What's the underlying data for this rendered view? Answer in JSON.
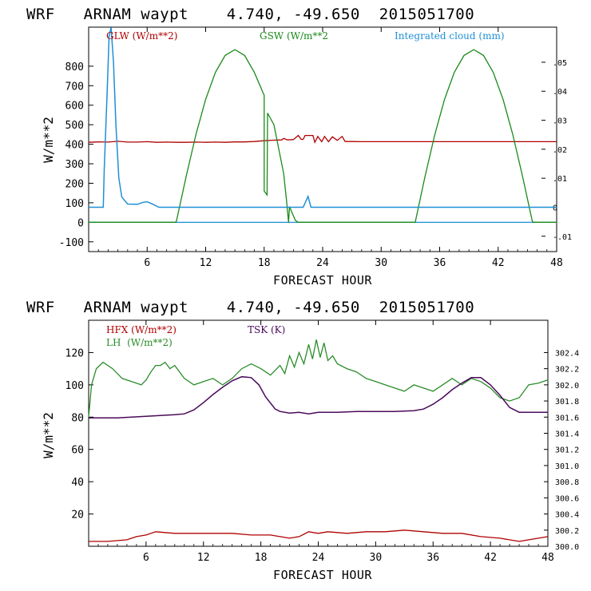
{
  "chart_data": [
    {
      "type": "line",
      "title": "WRF   ARNAM waypt    4.740, -49.650  2015051700",
      "xlabel": "FORECAST HOUR",
      "ylabel": "W/m**2",
      "xlim": [
        0,
        48
      ],
      "ylim": [
        -150,
        1000
      ],
      "x_ticks": [
        6,
        12,
        18,
        24,
        30,
        36,
        42,
        48
      ],
      "y_ticks": [
        -100,
        0,
        100,
        200,
        300,
        400,
        500,
        600,
        700,
        800
      ],
      "y2lim": [
        -0.0153,
        0.0621
      ],
      "y2_ticks": [
        ".05",
        ".04",
        ".03",
        ".02",
        ".01",
        "0",
        "-.01"
      ],
      "y2_tick_values": [
        0.05,
        0.04,
        0.03,
        0.02,
        0.01,
        0,
        -0.01
      ],
      "zero_line": 0,
      "series": [
        {
          "name": "GLW (W/m**2)",
          "color": "#b00000",
          "axis": "left",
          "points": [
            [
              0,
              410
            ],
            [
              1,
              412
            ],
            [
              2,
              411
            ],
            [
              3,
              415
            ],
            [
              4,
              411
            ],
            [
              5,
              411
            ],
            [
              6,
              413
            ],
            [
              7,
              410
            ],
            [
              8,
              411
            ],
            [
              9,
              410
            ],
            [
              10,
              410
            ],
            [
              11,
              411
            ],
            [
              12,
              410
            ],
            [
              13,
              411
            ],
            [
              14,
              410
            ],
            [
              15,
              412
            ],
            [
              16,
              412
            ],
            [
              17,
              414
            ],
            [
              18,
              418
            ],
            [
              19,
              421
            ],
            [
              19.8,
              422
            ],
            [
              20,
              430
            ],
            [
              20.4,
              422
            ],
            [
              21,
              424
            ],
            [
              21.5,
              445
            ],
            [
              21.8,
              425
            ],
            [
              22,
              425
            ],
            [
              22.2,
              445
            ],
            [
              23,
              445
            ],
            [
              23.2,
              410
            ],
            [
              23.5,
              440
            ],
            [
              23.9,
              413
            ],
            [
              24.2,
              440
            ],
            [
              24.6,
              413
            ],
            [
              25,
              438
            ],
            [
              25.5,
              420
            ],
            [
              26,
              440
            ],
            [
              26.3,
              414
            ],
            [
              27,
              414
            ],
            [
              28,
              413
            ],
            [
              30,
              413
            ],
            [
              32,
              413
            ],
            [
              34,
              413
            ],
            [
              36,
              413
            ],
            [
              38,
              413
            ],
            [
              40,
              413
            ],
            [
              42,
              413
            ],
            [
              44,
              413
            ],
            [
              46,
              413
            ],
            [
              48,
              413
            ]
          ]
        },
        {
          "name": "GSW (W/m**2",
          "color": "#1a8a1a",
          "axis": "left",
          "points": [
            [
              0,
              0
            ],
            [
              8.9,
              0
            ],
            [
              9,
              6
            ],
            [
              10,
              235
            ],
            [
              11,
              449
            ],
            [
              12,
              630
            ],
            [
              13,
              768
            ],
            [
              14,
              855
            ],
            [
              15,
              885
            ],
            [
              16,
              855
            ],
            [
              17,
              768
            ],
            [
              18,
              650
            ],
            [
              18,
              160
            ],
            [
              18.3,
              140
            ],
            [
              18.35,
              560
            ],
            [
              19,
              500
            ],
            [
              20,
              250
            ],
            [
              20.3,
              110
            ],
            [
              20.5,
              0
            ],
            [
              20.6,
              80
            ],
            [
              21.2,
              10
            ],
            [
              21.5,
              0
            ],
            [
              33.4,
              0
            ],
            [
              33.5,
              2
            ],
            [
              34.5,
              235
            ],
            [
              35.5,
              449
            ],
            [
              36.5,
              630
            ],
            [
              37.5,
              768
            ],
            [
              38.5,
              855
            ],
            [
              39.5,
              885
            ],
            [
              40.5,
              855
            ],
            [
              41.5,
              768
            ],
            [
              42.5,
              630
            ],
            [
              43.5,
              449
            ],
            [
              44.5,
              235
            ],
            [
              45.5,
              6
            ],
            [
              45.6,
              0
            ],
            [
              48,
              0
            ]
          ]
        },
        {
          "name": "Integrated cloud (mm)",
          "color": "#1f8fd6",
          "axis": "right",
          "points": [
            [
              0,
              0
            ],
            [
              1.5,
              0
            ],
            [
              1.6,
              0.013
            ],
            [
              1.9,
              0.04
            ],
            [
              2.1,
              0.059
            ],
            [
              2.3,
              0.062
            ],
            [
              2.55,
              0.05
            ],
            [
              2.8,
              0.028
            ],
            [
              3.1,
              0.01
            ],
            [
              3.4,
              0.0035
            ],
            [
              4,
              0.0011
            ],
            [
              5,
              0.001
            ],
            [
              5.6,
              0.0017
            ],
            [
              6,
              0.0019
            ],
            [
              6.6,
              0.001
            ],
            [
              7.2,
              0
            ],
            [
              22,
              0
            ],
            [
              22.5,
              0.0037
            ],
            [
              22.8,
              0
            ],
            [
              48,
              0
            ]
          ]
        }
      ]
    },
    {
      "type": "line",
      "title": "WRF   ARNAM waypt    4.740, -49.650  2015051700",
      "xlabel": "FORECAST HOUR",
      "ylabel": "W/m**2",
      "xlim": [
        0,
        48
      ],
      "ylim": [
        0,
        140
      ],
      "x_ticks": [
        6,
        12,
        18,
        24,
        30,
        36,
        42,
        48
      ],
      "y_ticks": [
        20,
        40,
        60,
        80,
        100,
        120
      ],
      "y2lim": [
        300,
        302.8
      ],
      "y2_ticks": [
        "302.4",
        "302.2",
        "302.0",
        "301.8",
        "301.6",
        "301.4",
        "301.2",
        "301.0",
        "300.8",
        "300.6",
        "300.4",
        "300.2",
        "300.0"
      ],
      "y2_tick_values": [
        302.4,
        302.2,
        302.0,
        301.8,
        301.6,
        301.4,
        301.2,
        301.0,
        300.8,
        300.6,
        300.4,
        300.2,
        300.0
      ],
      "series": [
        {
          "name": "HFX (W/m**2)",
          "color": "#b00000",
          "axis": "left",
          "points": [
            [
              0,
              3
            ],
            [
              2,
              3
            ],
            [
              4,
              4
            ],
            [
              5,
              6
            ],
            [
              6,
              7
            ],
            [
              7,
              9
            ],
            [
              9,
              8
            ],
            [
              12,
              8
            ],
            [
              15,
              8
            ],
            [
              17,
              7
            ],
            [
              19,
              7
            ],
            [
              20,
              6
            ],
            [
              21,
              5
            ],
            [
              22,
              6
            ],
            [
              23,
              9
            ],
            [
              24,
              8
            ],
            [
              25,
              9
            ],
            [
              27,
              8
            ],
            [
              29,
              9
            ],
            [
              31,
              9
            ],
            [
              33,
              10
            ],
            [
              35,
              9
            ],
            [
              37,
              8
            ],
            [
              39,
              8
            ],
            [
              41,
              6
            ],
            [
              43,
              5
            ],
            [
              45,
              3
            ],
            [
              46,
              4
            ],
            [
              47,
              5
            ],
            [
              48,
              6
            ]
          ]
        },
        {
          "name": "LH  (W/m**2)",
          "color": "#2a8c2a",
          "axis": "left",
          "points": [
            [
              0,
              80
            ],
            [
              0.3,
              100
            ],
            [
              0.8,
              110
            ],
            [
              1.5,
              114
            ],
            [
              2.5,
              110
            ],
            [
              3.5,
              104
            ],
            [
              4.5,
              102
            ],
            [
              5.5,
              100
            ],
            [
              6,
              103
            ],
            [
              6.5,
              108
            ],
            [
              7,
              112
            ],
            [
              7.5,
              112
            ],
            [
              8,
              114
            ],
            [
              8.5,
              110
            ],
            [
              9,
              112
            ],
            [
              10,
              104
            ],
            [
              11,
              100
            ],
            [
              12,
              102
            ],
            [
              13,
              104
            ],
            [
              14,
              100
            ],
            [
              15,
              104
            ],
            [
              16,
              110
            ],
            [
              17,
              113
            ],
            [
              18,
              110
            ],
            [
              19,
              106
            ],
            [
              20,
              112
            ],
            [
              20.5,
              107
            ],
            [
              21,
              118
            ],
            [
              21.5,
              111
            ],
            [
              22,
              120
            ],
            [
              22.5,
              113
            ],
            [
              23,
              125
            ],
            [
              23.4,
              116
            ],
            [
              23.8,
              128
            ],
            [
              24.2,
              117
            ],
            [
              24.6,
              126
            ],
            [
              25,
              115
            ],
            [
              25.5,
              118
            ],
            [
              26,
              113
            ],
            [
              27,
              110
            ],
            [
              28,
              108
            ],
            [
              29,
              104
            ],
            [
              30,
              102
            ],
            [
              31,
              100
            ],
            [
              32,
              98
            ],
            [
              33,
              96
            ],
            [
              34,
              100
            ],
            [
              35,
              98
            ],
            [
              36,
              96
            ],
            [
              37,
              100
            ],
            [
              38,
              104
            ],
            [
              39,
              100
            ],
            [
              40,
              104
            ],
            [
              41,
              102
            ],
            [
              42,
              98
            ],
            [
              43,
              92
            ],
            [
              44,
              90
            ],
            [
              45,
              92
            ],
            [
              46,
              100
            ],
            [
              47,
              101
            ],
            [
              48,
              103
            ]
          ]
        },
        {
          "name": "TSK (K)",
          "color": "#4a0a5a",
          "axis": "right",
          "points": [
            [
              0,
              301.59
            ],
            [
              3,
              301.59
            ],
            [
              6,
              301.61
            ],
            [
              9,
              301.63
            ],
            [
              10,
              301.64
            ],
            [
              11,
              301.69
            ],
            [
              12,
              301.78
            ],
            [
              13,
              301.88
            ],
            [
              14,
              301.97
            ],
            [
              15,
              302.05
            ],
            [
              16,
              302.1
            ],
            [
              17,
              302.09
            ],
            [
              17.8,
              302.0
            ],
            [
              18.5,
              301.85
            ],
            [
              19.5,
              301.7
            ],
            [
              20,
              301.67
            ],
            [
              21,
              301.65
            ],
            [
              22,
              301.66
            ],
            [
              23,
              301.64
            ],
            [
              24,
              301.66
            ],
            [
              26,
              301.66
            ],
            [
              28,
              301.67
            ],
            [
              30,
              301.67
            ],
            [
              32,
              301.67
            ],
            [
              34,
              301.68
            ],
            [
              35,
              301.7
            ],
            [
              36,
              301.76
            ],
            [
              37,
              301.84
            ],
            [
              38,
              301.94
            ],
            [
              39,
              302.02
            ],
            [
              40,
              302.09
            ],
            [
              41,
              302.09
            ],
            [
              42,
              302.0
            ],
            [
              43,
              301.87
            ],
            [
              44,
              301.72
            ],
            [
              45,
              301.66
            ],
            [
              46,
              301.66
            ],
            [
              48,
              301.66
            ]
          ]
        }
      ]
    }
  ]
}
